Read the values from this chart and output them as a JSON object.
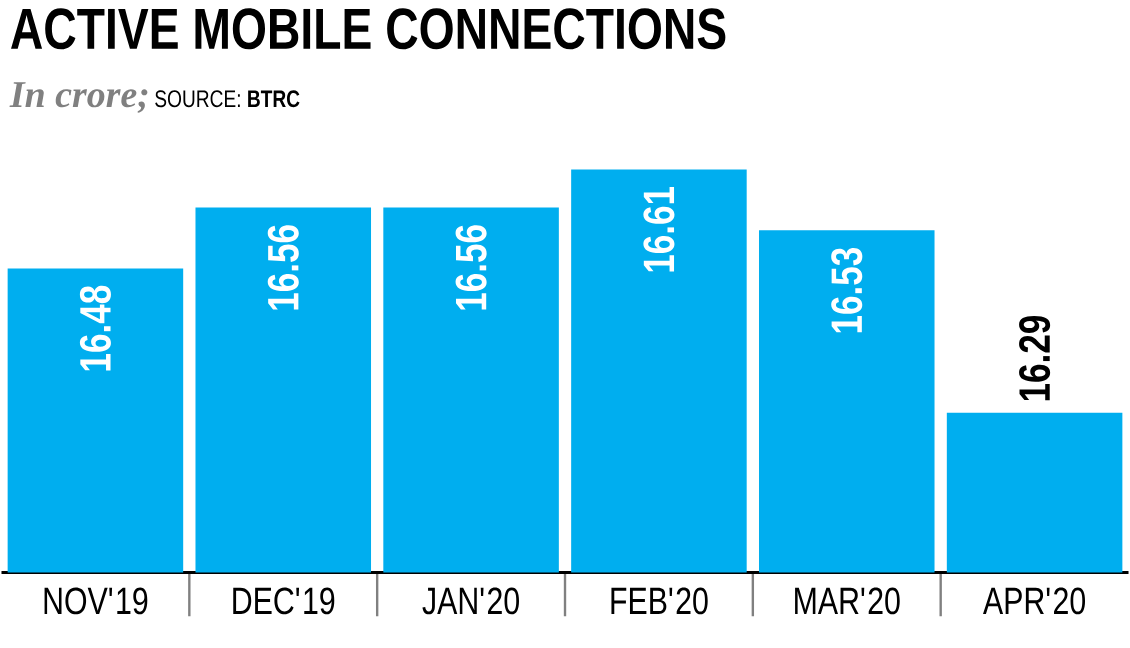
{
  "chart_data": {
    "type": "bar",
    "title": "ACTIVE MOBILE CONNECTIONS",
    "subtitle": "In crore;",
    "annotations": [
      "SOURCE: **BTRC**"
    ],
    "categories": [
      "NOV'19",
      "DEC'19",
      "JAN'20",
      "FEB'20",
      "MAR'20",
      "APR'20"
    ],
    "values": [
      16.48,
      16.56,
      16.56,
      16.61,
      16.53,
      16.29
    ],
    "color": "#00aeef",
    "ylim": [
      16.08,
      16.61
    ],
    "data_labels": true
  }
}
